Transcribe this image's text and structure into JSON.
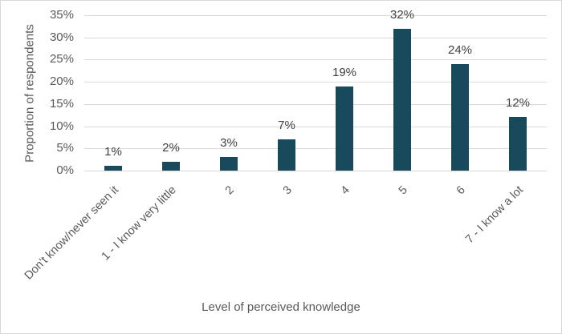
{
  "chart_data": {
    "type": "bar",
    "title": "",
    "xlabel": "Level of perceived knowledge",
    "ylabel": "Proportion of respondents",
    "ylim": [
      0,
      35
    ],
    "yticks": [
      "0%",
      "5%",
      "10%",
      "15%",
      "20%",
      "25%",
      "30%",
      "35%"
    ],
    "grid": true,
    "legend": null,
    "bar_color": "#194a5c",
    "categories": [
      "Don't know/never seen it",
      "1 - I know very little",
      "2",
      "3",
      "4",
      "5",
      "6",
      "7 - I know a lot"
    ],
    "values": [
      1,
      2,
      3,
      7,
      19,
      32,
      24,
      12
    ],
    "data_labels": [
      "1%",
      "2%",
      "3%",
      "7%",
      "19%",
      "32%",
      "24%",
      "12%"
    ]
  }
}
